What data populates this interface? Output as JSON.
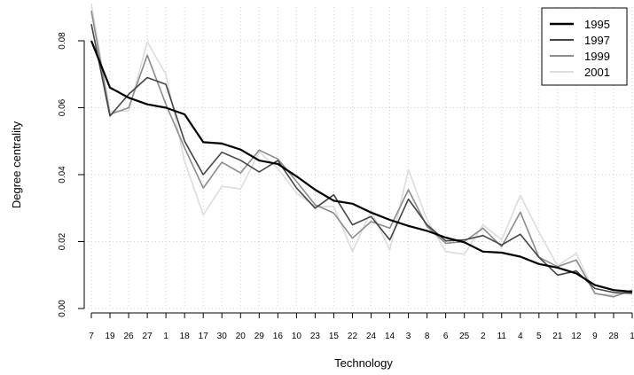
{
  "chart_data": {
    "type": "line",
    "xlabel": "Technology",
    "ylabel": "Degree centrality",
    "ylim": [
      0.0,
      0.09
    ],
    "yticks": [
      "0.00",
      "0.02",
      "0.04",
      "0.06",
      "0.08"
    ],
    "grid": true,
    "legend_position": "top-right",
    "categories": [
      "7",
      "19",
      "26",
      "27",
      "1",
      "18",
      "17",
      "30",
      "20",
      "29",
      "16",
      "10",
      "23",
      "15",
      "22",
      "24",
      "14",
      "3",
      "8",
      "6",
      "25",
      "2",
      "11",
      "4",
      "5",
      "21",
      "12",
      "9",
      "28",
      "1"
    ],
    "series": [
      {
        "name": "1995",
        "color": "#000000",
        "width": 2.2,
        "values": [
          0.08,
          0.066,
          0.063,
          0.061,
          0.06,
          0.058,
          0.0497,
          0.0493,
          0.0475,
          0.0442,
          0.0432,
          0.0395,
          0.0355,
          0.0322,
          0.0313,
          0.0287,
          0.0265,
          0.0247,
          0.0232,
          0.0212,
          0.0198,
          0.017,
          0.0167,
          0.0155,
          0.0133,
          0.0122,
          0.0105,
          0.007,
          0.0055,
          0.005
        ]
      },
      {
        "name": "1997",
        "color": "#444444",
        "width": 1.6,
        "values": [
          0.085,
          0.0575,
          0.064,
          0.069,
          0.067,
          0.05,
          0.04,
          0.0467,
          0.0443,
          0.0408,
          0.0442,
          0.036,
          0.03,
          0.034,
          0.025,
          0.0275,
          0.0205,
          0.0327,
          0.025,
          0.0202,
          0.0205,
          0.0218,
          0.019,
          0.0222,
          0.0153,
          0.01,
          0.0112,
          0.006,
          0.0048,
          0.0045
        ]
      },
      {
        "name": "1999",
        "color": "#8c8c8c",
        "width": 1.6,
        "values": [
          0.089,
          0.058,
          0.06,
          0.0757,
          0.061,
          0.048,
          0.036,
          0.0437,
          0.0405,
          0.0473,
          0.0447,
          0.038,
          0.031,
          0.0285,
          0.021,
          0.026,
          0.024,
          0.0355,
          0.0245,
          0.0195,
          0.02,
          0.024,
          0.0185,
          0.0288,
          0.0153,
          0.0125,
          0.0145,
          0.0045,
          0.0035,
          0.0055
        ]
      },
      {
        "name": "2001",
        "color": "#dcdcdc",
        "width": 1.6,
        "values": [
          0.091,
          0.059,
          0.059,
          0.0797,
          0.07,
          0.044,
          0.028,
          0.0365,
          0.0357,
          0.0468,
          0.0418,
          0.0345,
          0.0305,
          0.0305,
          0.017,
          0.0293,
          0.0175,
          0.0415,
          0.0265,
          0.017,
          0.0162,
          0.025,
          0.0205,
          0.0338,
          0.0228,
          0.0128,
          0.0165,
          0.0045,
          0.004,
          0.0055
        ]
      }
    ]
  }
}
